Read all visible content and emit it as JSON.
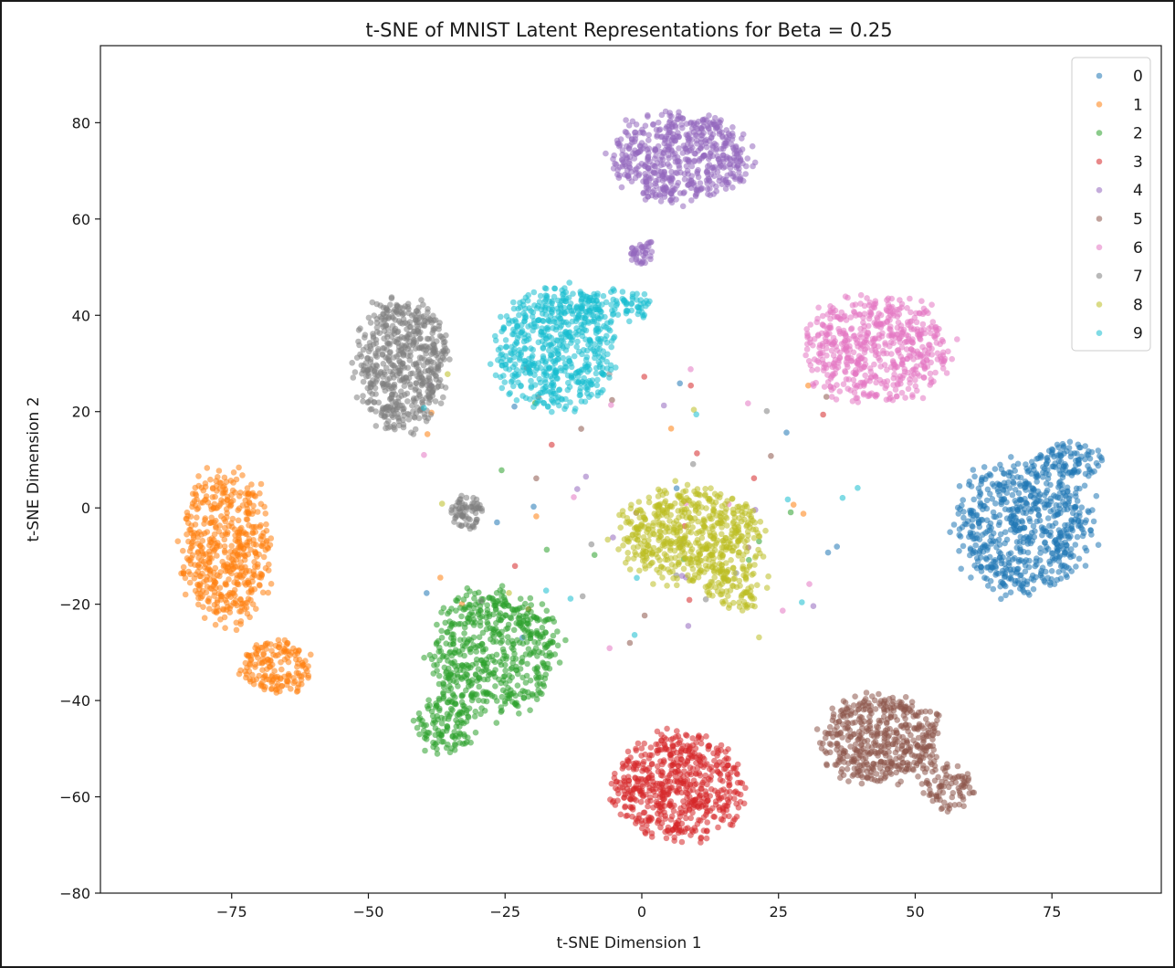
{
  "chart_data": {
    "type": "scatter",
    "title": "t-SNE of MNIST Latent Representations for Beta = 0.25",
    "xlabel": "t-SNE Dimension 1",
    "ylabel": "t-SNE Dimension 2",
    "xlim": [
      -99,
      95
    ],
    "ylim": [
      -80,
      96
    ],
    "xticks": [
      -75,
      -50,
      -25,
      0,
      25,
      50,
      75
    ],
    "yticks": [
      -80,
      -60,
      -40,
      -20,
      0,
      20,
      40,
      60,
      80
    ],
    "xtick_labels": [
      "−75",
      "−50",
      "−25",
      "0",
      "25",
      "50",
      "75"
    ],
    "ytick_labels": [
      "−80",
      "−60",
      "−40",
      "−20",
      "0",
      "20",
      "40",
      "60",
      "80"
    ],
    "grid": false,
    "legend_position": "top-right",
    "marker_opacity": 0.55,
    "series": [
      {
        "name": "0",
        "color": "#1f77b4",
        "clusters": [
          {
            "cx": 70,
            "cy": -4,
            "rx": 14,
            "ry": 15,
            "n": 620
          },
          {
            "cx": 78,
            "cy": 10,
            "rx": 7,
            "ry": 4,
            "n": 90
          }
        ]
      },
      {
        "name": "1",
        "color": "#ff7f0e",
        "clusters": [
          {
            "cx": -76,
            "cy": -8,
            "rx": 9,
            "ry": 18,
            "n": 500
          },
          {
            "cx": -67,
            "cy": -33,
            "rx": 7,
            "ry": 6,
            "n": 160
          }
        ]
      },
      {
        "name": "2",
        "color": "#2ca02c",
        "clusters": [
          {
            "cx": -27,
            "cy": -30,
            "rx": 13,
            "ry": 14,
            "n": 540
          },
          {
            "cx": -36,
            "cy": -45,
            "rx": 6,
            "ry": 7,
            "n": 120
          }
        ]
      },
      {
        "name": "3",
        "color": "#d62728",
        "clusters": [
          {
            "cx": 7,
            "cy": -58,
            "rx": 13,
            "ry": 12,
            "n": 580
          }
        ]
      },
      {
        "name": "4",
        "color": "#9467bd",
        "clusters": [
          {
            "cx": 7,
            "cy": 73,
            "rx": 14,
            "ry": 10,
            "n": 560
          },
          {
            "cx": 0,
            "cy": 53,
            "rx": 3,
            "ry": 3,
            "n": 40
          }
        ]
      },
      {
        "name": "5",
        "color": "#8c564b",
        "clusters": [
          {
            "cx": 44,
            "cy": -48,
            "rx": 12,
            "ry": 10,
            "n": 470
          },
          {
            "cx": 56,
            "cy": -58,
            "rx": 5,
            "ry": 5,
            "n": 80
          }
        ]
      },
      {
        "name": "6",
        "color": "#e377c2",
        "clusters": [
          {
            "cx": 43,
            "cy": 33,
            "rx": 15,
            "ry": 12,
            "n": 560
          }
        ]
      },
      {
        "name": "7",
        "color": "#7f7f7f",
        "clusters": [
          {
            "cx": -44,
            "cy": 30,
            "rx": 9,
            "ry": 15,
            "n": 560
          },
          {
            "cx": -32,
            "cy": -1,
            "rx": 3,
            "ry": 4,
            "n": 70
          }
        ]
      },
      {
        "name": "8",
        "color": "#bcbd22",
        "clusters": [
          {
            "cx": 9,
            "cy": -6,
            "rx": 14,
            "ry": 11,
            "n": 560
          },
          {
            "cx": 17,
            "cy": -17,
            "rx": 6,
            "ry": 5,
            "n": 80
          }
        ]
      },
      {
        "name": "9",
        "color": "#17becf",
        "clusters": [
          {
            "cx": -16,
            "cy": 33,
            "rx": 12,
            "ry": 14,
            "n": 560
          },
          {
            "cx": -5,
            "cy": 42,
            "rx": 8,
            "ry": 4,
            "n": 100
          }
        ]
      }
    ]
  }
}
